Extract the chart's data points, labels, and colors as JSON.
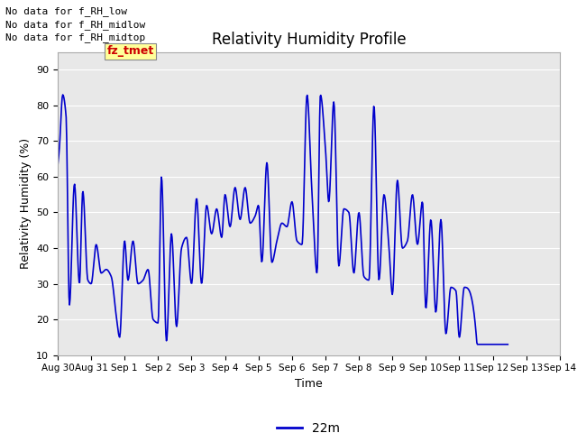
{
  "title": "Relativity Humidity Profile",
  "xlabel": "Time",
  "ylabel": "Relativity Humidity (%)",
  "ylim": [
    10,
    95
  ],
  "yticks": [
    10,
    20,
    30,
    40,
    50,
    60,
    70,
    80,
    90
  ],
  "line_color": "#0000cc",
  "line_width": 1.2,
  "background_color": "#e8e8e8",
  "legend_label": "22m",
  "annotations": [
    "No data for f_RH_low",
    "No data for f_RH_midlow",
    "No data for f_RH_midtop"
  ],
  "annotation_color": "black",
  "annotation_fontsize": 8,
  "fz_tmet_color": "#cc0000",
  "fz_tmet_bg": "#ffff99",
  "xtick_labels": [
    "Aug 30",
    "Aug 31",
    "Sep 1",
    "Sep 2",
    "Sep 3",
    "Sep 4",
    "Sep 5",
    "Sep 6",
    "Sep 7",
    "Sep 8",
    "Sep 9",
    "Sep 10",
    "Sep 11",
    "Sep 12",
    "Sep 13",
    "Sep 14"
  ],
  "figsize": [
    6.4,
    4.8
  ],
  "dpi": 100,
  "grid_color": "white",
  "spine_color": "#aaaaaa"
}
